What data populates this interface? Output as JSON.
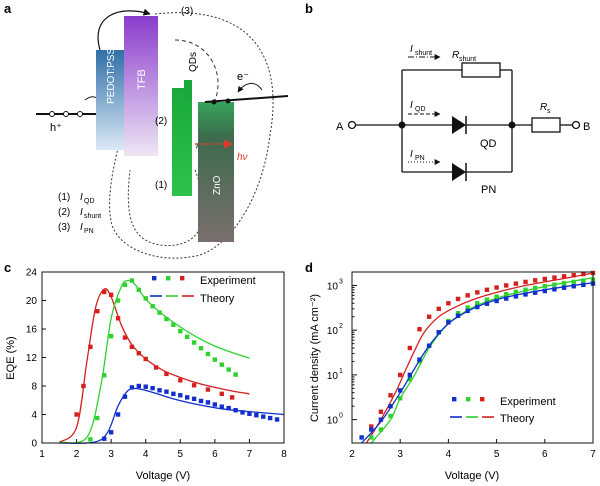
{
  "panels": {
    "a": "a",
    "b": "b",
    "c": "c",
    "d": "d"
  },
  "band": {
    "pedot": "PEDOT:PSS",
    "tfb": "TFB",
    "qds": "QDs",
    "zno": "ZnO",
    "hole": "h⁺",
    "electron": "e⁻",
    "photon": "hν",
    "n1": "(1)",
    "n2": "(2)",
    "n3": "(3)",
    "legend": [
      {
        "num": "(1)",
        "main": "I",
        "sub": "QD"
      },
      {
        "num": "(2)",
        "main": "I",
        "sub": "shunt"
      },
      {
        "num": "(3)",
        "main": "I",
        "sub": "PN"
      }
    ],
    "colors": {
      "pedot": "#2f6fa8",
      "tfb": "#8a3ccc",
      "qd": "#1aa83c",
      "zno": "#5a5a5a"
    }
  },
  "circuit": {
    "A": "A",
    "B": "B",
    "ishunt": {
      "main": "I",
      "sub": "shunt"
    },
    "rshunt": {
      "main": "R",
      "sub": "shunt"
    },
    "iqd": {
      "main": "I",
      "sub": "QD"
    },
    "ipn": {
      "main": "I",
      "sub": "PN"
    },
    "rs": {
      "main": "R",
      "sub": "s"
    },
    "qd": "QD",
    "pn": "PN"
  },
  "chart_data": [
    {
      "type": "scatter",
      "panel": "c",
      "xlabel": "Voltage (V)",
      "ylabel": "EQE (%)",
      "xlim": [
        1,
        8
      ],
      "ylim": [
        0,
        24
      ],
      "xticks": [
        "1",
        "2",
        "3",
        "4",
        "5",
        "6",
        "7",
        "8"
      ],
      "yticks": [
        "0",
        "4",
        "8",
        "12",
        "16",
        "20",
        "24"
      ],
      "legend": [
        {
          "label": "Experiment",
          "kind": "markers"
        },
        {
          "label": "Theory",
          "kind": "lines"
        }
      ],
      "series": [
        {
          "name": "red",
          "color": "#d62020",
          "exp_x": [
            2.0,
            2.2,
            2.4,
            2.6,
            2.8,
            3.0,
            3.2,
            3.4,
            3.6,
            3.8,
            4.0,
            4.3,
            4.6,
            5.0,
            5.4,
            5.8,
            6.2,
            6.5
          ],
          "exp_y": [
            4.0,
            8.0,
            13.5,
            18.5,
            21.2,
            20.8,
            17.5,
            14.8,
            13.5,
            12.6,
            11.8,
            10.6,
            9.7,
            8.8,
            8.1,
            7.5,
            6.9,
            6.4
          ],
          "th_x": [
            1.5,
            2.0,
            2.3,
            2.55,
            2.8,
            3.0,
            3.3,
            3.6,
            4.0,
            4.5,
            5.0,
            5.5,
            6.0,
            6.5,
            7.0
          ],
          "th_y": [
            0.1,
            2.2,
            11.5,
            19.0,
            21.6,
            20.5,
            16.5,
            13.8,
            11.8,
            10.2,
            9.2,
            8.4,
            7.8,
            7.3,
            6.9
          ]
        },
        {
          "name": "green",
          "color": "#2ed12e",
          "exp_x": [
            2.4,
            2.6,
            2.8,
            3.0,
            3.2,
            3.4,
            3.6,
            3.8,
            4.0,
            4.2,
            4.4,
            4.6,
            4.8,
            5.0,
            5.2,
            5.4,
            5.6,
            5.8,
            6.0,
            6.2,
            6.4,
            6.6
          ],
          "exp_y": [
            0.5,
            3.5,
            9.5,
            15.0,
            20.0,
            22.2,
            22.8,
            21.5,
            20.3,
            19.2,
            18.3,
            17.4,
            16.6,
            15.7,
            14.9,
            14.1,
            13.3,
            12.5,
            11.7,
            11.0,
            10.3,
            9.6
          ],
          "th_x": [
            1.5,
            2.3,
            2.7,
            3.0,
            3.3,
            3.5,
            3.7,
            4.0,
            4.5,
            5.0,
            5.5,
            6.0,
            6.5,
            7.0
          ],
          "th_y": [
            0.1,
            0.8,
            8.0,
            17.5,
            22.0,
            22.8,
            22.2,
            20.2,
            18.0,
            16.3,
            14.8,
            13.6,
            12.7,
            11.9
          ]
        },
        {
          "name": "blue",
          "color": "#1030cc",
          "exp_x": [
            2.8,
            3.0,
            3.2,
            3.4,
            3.6,
            3.8,
            4.0,
            4.2,
            4.4,
            4.6,
            4.8,
            5.0,
            5.2,
            5.4,
            5.6,
            5.8,
            6.0,
            6.2,
            6.4,
            6.6,
            6.8,
            7.0,
            7.2,
            7.4,
            7.6,
            7.8
          ],
          "exp_y": [
            0.6,
            1.5,
            4.0,
            6.5,
            7.8,
            8.0,
            7.9,
            7.7,
            7.4,
            7.2,
            6.9,
            6.7,
            6.4,
            6.2,
            5.9,
            5.7,
            5.4,
            5.1,
            4.9,
            4.6,
            4.3,
            4.1,
            3.9,
            3.7,
            3.5,
            3.3
          ],
          "th_x": [
            1.5,
            2.5,
            2.9,
            3.2,
            3.5,
            3.8,
            4.2,
            4.8,
            5.5,
            6.2,
            7.0,
            8.0
          ],
          "th_y": [
            0.0,
            0.1,
            1.5,
            5.2,
            7.4,
            7.6,
            7.1,
            6.2,
            5.4,
            4.8,
            4.4,
            4.0
          ]
        }
      ]
    },
    {
      "type": "scatter",
      "panel": "d",
      "xlabel": "Voltage (V)",
      "ylabel": "Current density (mA cm⁻²)",
      "xlim": [
        2,
        7
      ],
      "ylim": [
        0.3,
        2000
      ],
      "yscale": "log",
      "xticks": [
        "2",
        "3",
        "4",
        "5",
        "6",
        "7"
      ],
      "ytick_values": [
        1,
        10,
        100,
        1000
      ],
      "legend": [
        {
          "label": "Experiment",
          "kind": "markers"
        },
        {
          "label": "Theory",
          "kind": "lines"
        }
      ],
      "series": [
        {
          "name": "red",
          "color": "#d62020",
          "exp_x": [
            2.4,
            2.6,
            2.8,
            3.0,
            3.2,
            3.4,
            3.6,
            3.8,
            4.0,
            4.2,
            4.4,
            4.6,
            4.8,
            5.0,
            5.2,
            5.4,
            5.6,
            5.8,
            6.0,
            6.2,
            6.4,
            6.6,
            6.8,
            7.0
          ],
          "exp_y": [
            0.7,
            1.5,
            3.5,
            10,
            40,
            105,
            200,
            300,
            400,
            500,
            600,
            700,
            800,
            900,
            1000,
            1100,
            1200,
            1300,
            1400,
            1500,
            1600,
            1700,
            1800,
            1900
          ],
          "th_x": [
            2.3,
            2.6,
            2.9,
            3.1,
            3.3,
            3.5,
            3.8,
            4.2,
            4.6,
            5.0,
            5.5,
            6.0,
            6.5,
            7.0
          ],
          "th_y": [
            0.3,
            1.0,
            4.0,
            12,
            35,
            90,
            200,
            350,
            520,
            700,
            950,
            1200,
            1500,
            1900
          ]
        },
        {
          "name": "green",
          "color": "#2ed12e",
          "exp_x": [
            2.4,
            2.6,
            2.8,
            3.0,
            3.2,
            3.4,
            3.6,
            3.8,
            4.0,
            4.2,
            4.4,
            4.6,
            4.8,
            5.0,
            5.2,
            5.4,
            5.6,
            5.8,
            6.0,
            6.2,
            6.4,
            6.6,
            6.8,
            7.0
          ],
          "exp_y": [
            0.4,
            0.6,
            1.2,
            3.0,
            8.0,
            20,
            45,
            90,
            160,
            240,
            320,
            400,
            480,
            560,
            640,
            720,
            800,
            880,
            960,
            1040,
            1120,
            1200,
            1280,
            1350
          ],
          "th_x": [
            2.4,
            2.8,
            3.0,
            3.3,
            3.6,
            4.0,
            4.5,
            5.0,
            5.5,
            6.0,
            6.5,
            7.0
          ],
          "th_y": [
            0.3,
            1.0,
            3.0,
            10,
            40,
            140,
            320,
            520,
            720,
            950,
            1200,
            1500
          ]
        },
        {
          "name": "blue",
          "color": "#1030cc",
          "exp_x": [
            2.2,
            2.4,
            2.6,
            2.8,
            3.0,
            3.2,
            3.4,
            3.6,
            3.8,
            4.0,
            4.2,
            4.4,
            4.6,
            4.8,
            5.0,
            5.2,
            5.4,
            5.6,
            5.8,
            6.0,
            6.2,
            6.4,
            6.6,
            6.8,
            7.0
          ],
          "exp_y": [
            0.4,
            0.6,
            1.0,
            2.0,
            4.5,
            10,
            22,
            45,
            90,
            150,
            210,
            270,
            330,
            390,
            450,
            510,
            570,
            630,
            690,
            750,
            820,
            890,
            960,
            1030,
            1100
          ],
          "th_x": [
            2.2,
            2.6,
            3.0,
            3.3,
            3.6,
            4.0,
            4.5,
            5.0,
            5.5,
            6.0,
            6.5,
            7.0
          ],
          "th_y": [
            0.3,
            0.9,
            4.0,
            14,
            45,
            140,
            300,
            480,
            640,
            800,
            970,
            1150
          ]
        }
      ]
    }
  ]
}
